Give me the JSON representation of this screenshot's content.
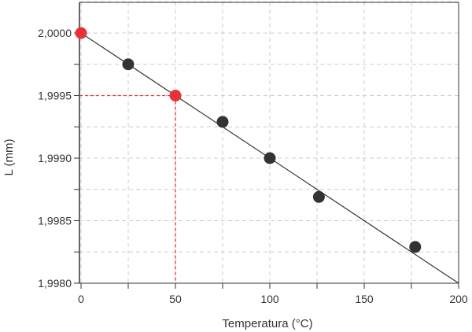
{
  "chart_data": {
    "type": "scatter",
    "title": "",
    "xlabel": "Temperatura (°C)",
    "ylabel": "L (mm)",
    "xlim": [
      0,
      200
    ],
    "ylim": [
      1.998,
      2.0
    ],
    "grid": true,
    "x_ticks": [
      "0",
      "50",
      "100",
      "150",
      "200"
    ],
    "y_ticks": [
      "1,9980",
      "1,9985",
      "1,9990",
      "1,9995",
      "2,0000"
    ],
    "points": [
      {
        "x": 0,
        "y": 2.0,
        "color": "#e8323a"
      },
      {
        "x": 25,
        "y": 1.99975,
        "color": "#333333"
      },
      {
        "x": 50,
        "y": 1.9995,
        "color": "#e8323a"
      },
      {
        "x": 75,
        "y": 1.99929,
        "color": "#333333"
      },
      {
        "x": 100,
        "y": 1.999,
        "color": "#333333"
      },
      {
        "x": 126,
        "y": 1.99869,
        "color": "#333333"
      },
      {
        "x": 177,
        "y": 1.99829,
        "color": "#333333"
      }
    ],
    "fit_line": {
      "x": [
        0,
        200
      ],
      "y": [
        2.0,
        1.998
      ],
      "color": "#333333"
    },
    "highlight": {
      "x": 50,
      "y": 1.9995,
      "color": "#e8323a"
    }
  }
}
